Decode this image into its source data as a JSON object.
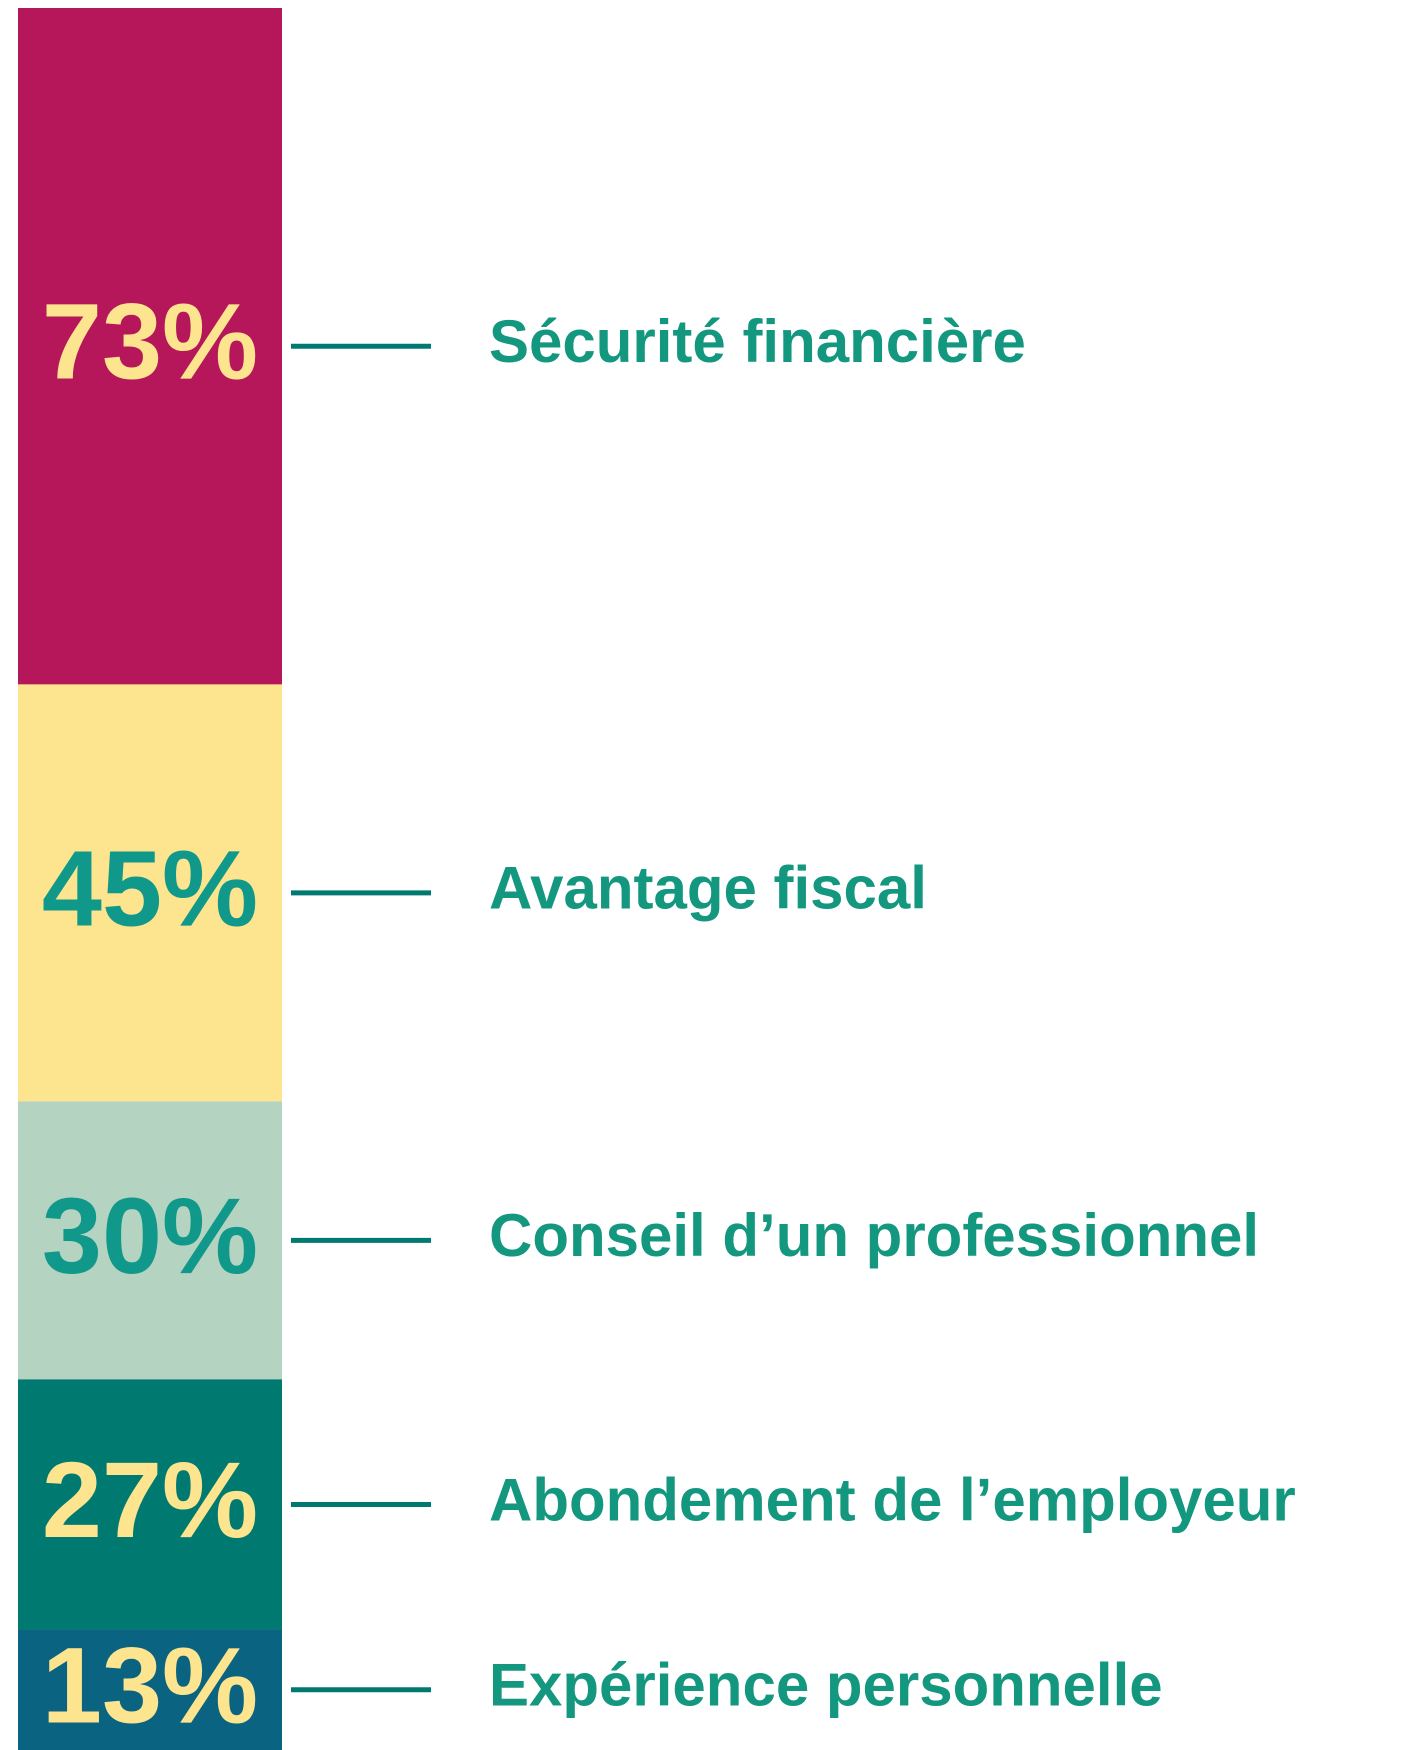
{
  "chart_data": {
    "type": "stacked_bar",
    "categories": [
      "Sécurité financière",
      "Avantage fiscal",
      "Conseil d’un professionnel",
      "Abondement de l’employeur",
      "Expérience personnelle"
    ],
    "values": [
      73,
      45,
      30,
      27,
      13
    ],
    "value_labels": [
      "73%",
      "45%",
      "30%",
      "27%",
      "13%"
    ],
    "colors": [
      "#b5175a",
      "#fde48f",
      "#b5d3c1",
      "#007a70",
      "#0a6380"
    ],
    "label_colors": [
      "#fde48f",
      "#10998a",
      "#10998a",
      "#fde48f",
      "#fde48f"
    ],
    "category_color": "#13977f"
  }
}
